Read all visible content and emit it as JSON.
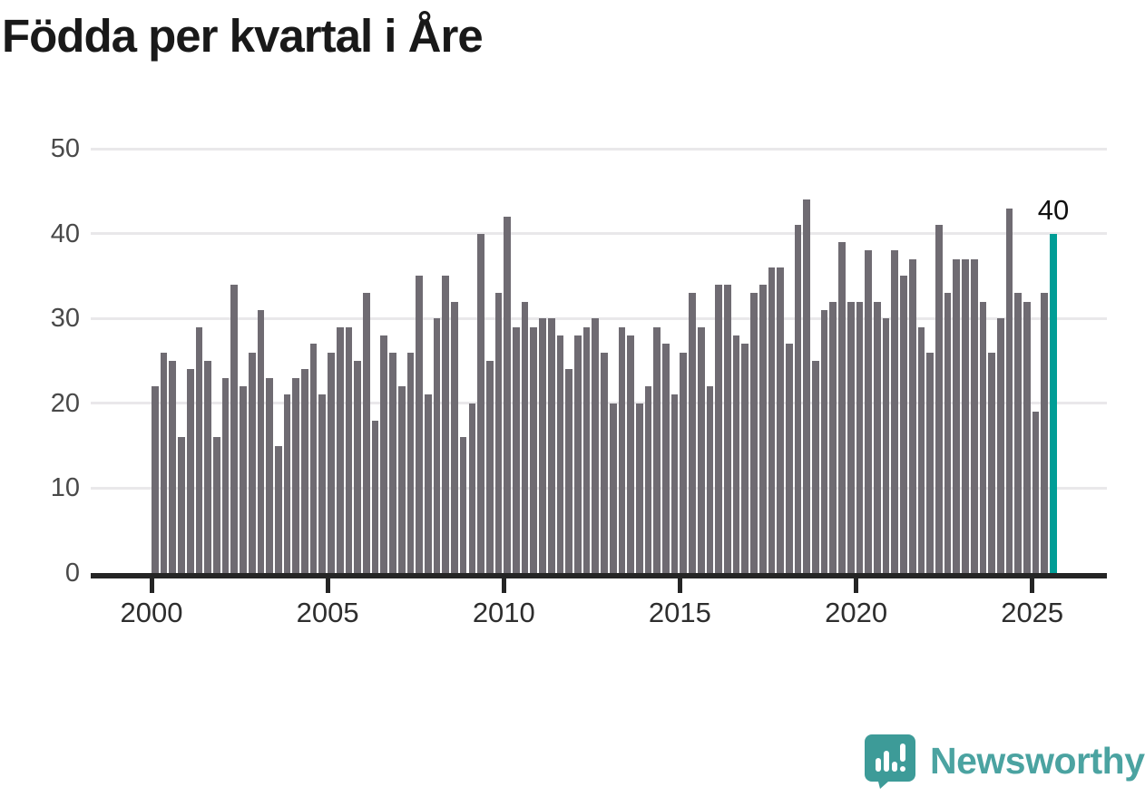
{
  "title": "Födda per kvartal i Åre",
  "branding": {
    "logo_text": "Newsworthy",
    "logo_color": "#3d9b98",
    "wordmark_color": "#4ba3a1"
  },
  "colors": {
    "bar": "#6f6b72",
    "highlight": "#009d96",
    "grid": "#e9e8ea",
    "axis": "#252525",
    "title": "#191919",
    "y_label": "#494949",
    "x_label": "#2e2e2e"
  },
  "chart_data": {
    "type": "bar",
    "title": "Födda per kvartal i Åre",
    "x_start": "2000Q1",
    "x_end": "2025Q3",
    "frequency": "quarterly",
    "ylim": [
      0,
      50
    ],
    "y_ticks": [
      0,
      10,
      20,
      30,
      40,
      50
    ],
    "x_ticks": [
      {
        "label": "2000",
        "index": 0
      },
      {
        "label": "2005",
        "index": 20
      },
      {
        "label": "2010",
        "index": 40
      },
      {
        "label": "2015",
        "index": 60
      },
      {
        "label": "2020",
        "index": 80
      },
      {
        "label": "2025",
        "index": 100
      }
    ],
    "values": [
      22,
      26,
      25,
      16,
      24,
      29,
      25,
      16,
      23,
      34,
      22,
      26,
      31,
      23,
      15,
      21,
      23,
      24,
      27,
      21,
      26,
      29,
      29,
      25,
      33,
      18,
      28,
      26,
      22,
      26,
      35,
      21,
      30,
      35,
      32,
      16,
      20,
      40,
      25,
      33,
      42,
      29,
      32,
      29,
      30,
      30,
      28,
      24,
      28,
      29,
      30,
      26,
      20,
      29,
      28,
      20,
      22,
      29,
      27,
      21,
      26,
      33,
      29,
      22,
      34,
      34,
      28,
      27,
      33,
      34,
      36,
      36,
      27,
      41,
      44,
      25,
      31,
      32,
      39,
      32,
      32,
      38,
      32,
      30,
      38,
      35,
      37,
      29,
      26,
      41,
      33,
      37,
      37,
      37,
      32,
      26,
      30,
      43,
      33,
      32,
      19,
      33,
      40
    ],
    "highlight_index": 102,
    "highlight_label": "40",
    "grid": true,
    "legend": false
  }
}
